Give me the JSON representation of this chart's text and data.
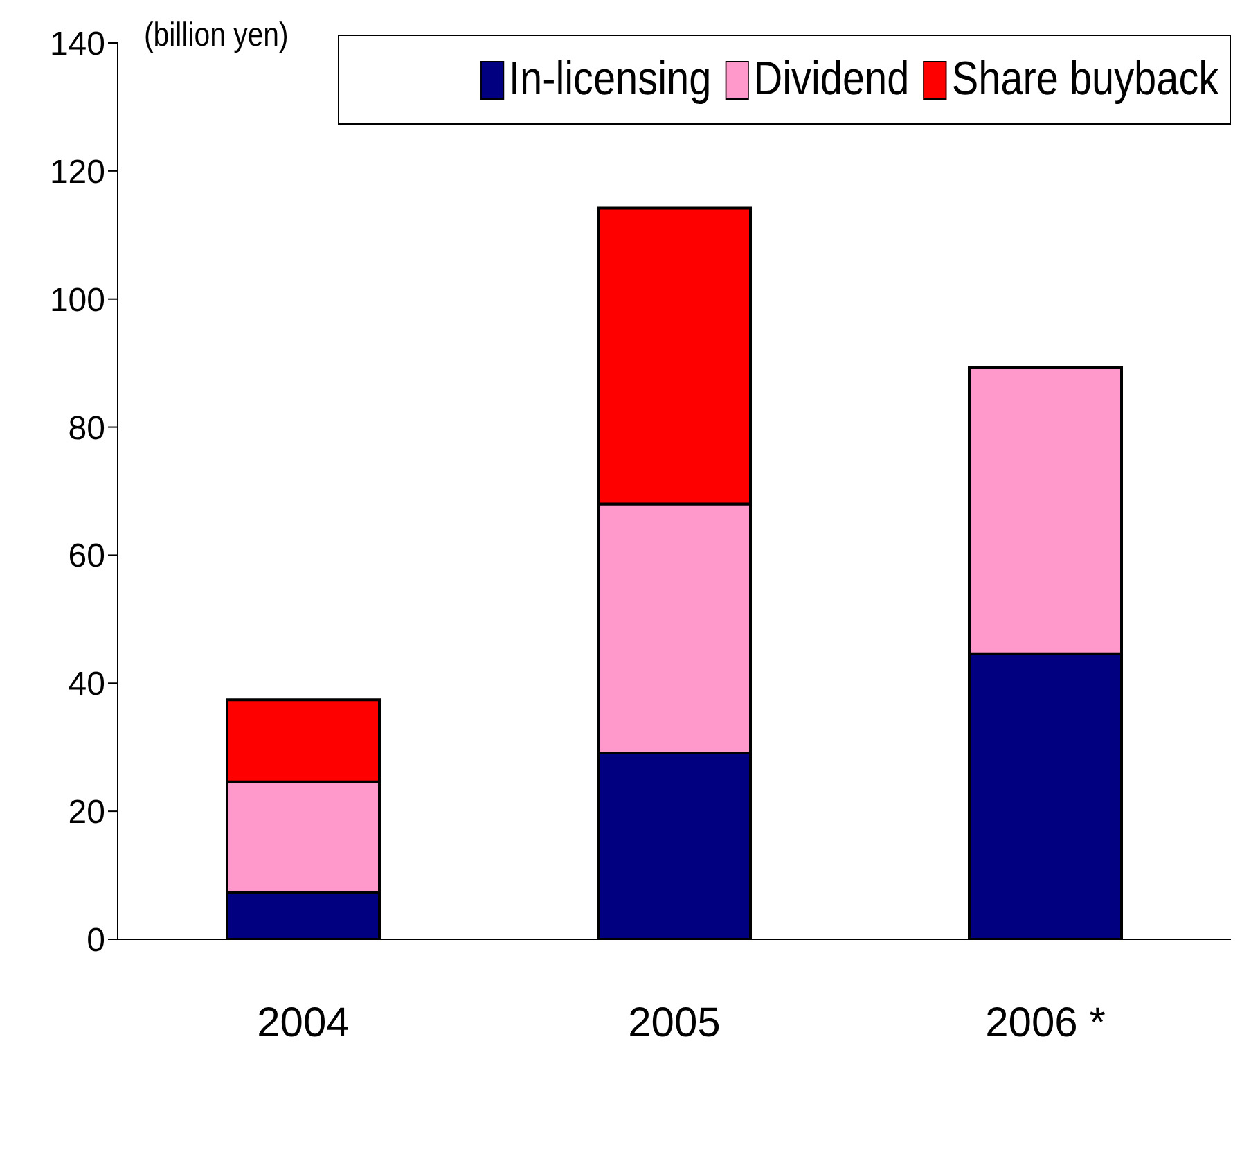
{
  "chart_data": {
    "type": "bar",
    "stacked": true,
    "ylabel": "(billion yen)",
    "categories": [
      "2004",
      "2005",
      "2006 *"
    ],
    "series": [
      {
        "name": "In-licensing",
        "color": "#000080",
        "values": [
          7.3,
          29.1,
          44.6
        ]
      },
      {
        "name": "Dividend",
        "color": "#ff99cc",
        "values": [
          17.3,
          38.9,
          44.7
        ]
      },
      {
        "name": "Share buyback",
        "color": "#ff0000",
        "values": [
          12.8,
          46.2,
          null
        ]
      }
    ],
    "ylim": [
      0,
      140
    ],
    "yticks": [
      0,
      20,
      40,
      60,
      80,
      100,
      120,
      140
    ],
    "grid": false,
    "legend": "top right"
  }
}
